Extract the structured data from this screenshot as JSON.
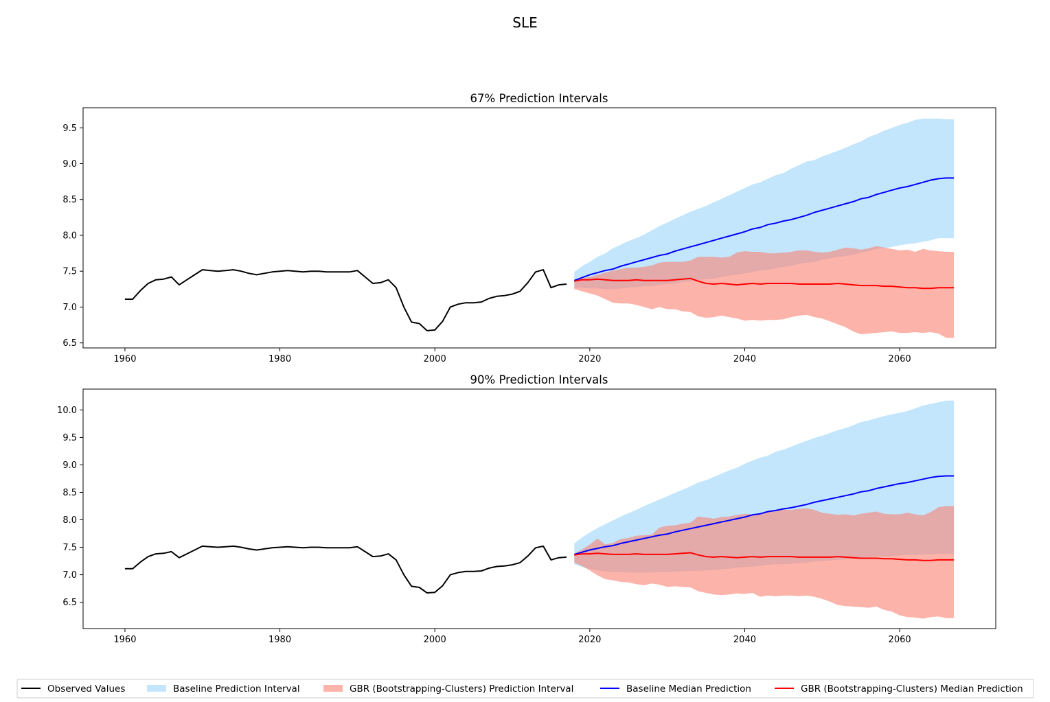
{
  "figure": {
    "title": "SLE"
  },
  "colors": {
    "observed": "#000000",
    "baseline_band": "#87CEFA",
    "baseline_median": "#0000FF",
    "gbr_band": "#FA8072",
    "gbr_median": "#FF0000"
  },
  "legend": {
    "placement": "bottom-center",
    "items": [
      {
        "label": "Observed Values",
        "kind": "line",
        "color": "#000000"
      },
      {
        "label": "Baseline Prediction Interval",
        "kind": "patch",
        "color": "#87CEFA"
      },
      {
        "label": "GBR (Bootstrapping-Clusters) Prediction Interval",
        "kind": "patch",
        "color": "#FA8072"
      },
      {
        "label": "Baseline Median Prediction",
        "kind": "line",
        "color": "#0000FF"
      },
      {
        "label": "GBR (Bootstrapping-Clusters) Median Prediction",
        "kind": "line",
        "color": "#FF0000"
      }
    ]
  },
  "chart_data": [
    {
      "type": "line",
      "title": "67% Prediction Intervals",
      "xlabel": "",
      "ylabel": "",
      "xlim": [
        1954.6,
        2072.4
      ],
      "ylim": [
        6.43,
        9.78
      ],
      "xticks": [
        1960,
        1980,
        2000,
        2020,
        2040,
        2060
      ],
      "yticks": [
        6.5,
        7.0,
        7.5,
        8.0,
        8.5,
        9.0,
        9.5
      ],
      "grid": false,
      "observed": {
        "x_start": 1960,
        "values": [
          7.11,
          7.11,
          7.23,
          7.33,
          7.38,
          7.39,
          7.42,
          7.31,
          7.38,
          7.45,
          7.52,
          7.51,
          7.5,
          7.51,
          7.52,
          7.5,
          7.47,
          7.45,
          7.47,
          7.49,
          7.5,
          7.51,
          7.5,
          7.49,
          7.5,
          7.5,
          7.49,
          7.49,
          7.49,
          7.49,
          7.51,
          7.42,
          7.33,
          7.34,
          7.38,
          7.27,
          7.0,
          6.79,
          6.77,
          6.67,
          6.68,
          6.8,
          7.0,
          7.04,
          7.06,
          7.06,
          7.07,
          7.12,
          7.15,
          7.16,
          7.18,
          7.22,
          7.34,
          7.49,
          7.52,
          7.27,
          7.31,
          7.32
        ]
      },
      "forecast": {
        "x_start": 2018,
        "baseline_median": [
          7.37,
          7.41,
          7.45,
          7.48,
          7.51,
          7.53,
          7.57,
          7.6,
          7.63,
          7.66,
          7.69,
          7.72,
          7.74,
          7.78,
          7.81,
          7.84,
          7.87,
          7.9,
          7.93,
          7.96,
          7.99,
          8.02,
          8.05,
          8.09,
          8.11,
          8.15,
          8.17,
          8.2,
          8.22,
          8.25,
          8.28,
          8.32,
          8.35,
          8.38,
          8.41,
          8.44,
          8.47,
          8.51,
          8.53,
          8.57,
          8.6,
          8.63,
          8.66,
          8.68,
          8.71,
          8.74,
          8.77,
          8.79,
          8.8,
          8.8
        ],
        "baseline_lower": [
          7.27,
          7.27,
          7.26,
          7.26,
          7.25,
          7.25,
          7.26,
          7.27,
          7.28,
          7.29,
          7.29,
          7.31,
          7.32,
          7.33,
          7.35,
          7.36,
          7.38,
          7.39,
          7.4,
          7.42,
          7.44,
          7.45,
          7.47,
          7.49,
          7.51,
          7.52,
          7.54,
          7.56,
          7.58,
          7.6,
          7.62,
          7.63,
          7.66,
          7.68,
          7.7,
          7.71,
          7.73,
          7.76,
          7.78,
          7.81,
          7.82,
          7.84,
          7.86,
          7.88,
          7.89,
          7.91,
          7.93,
          7.96,
          7.96,
          7.96
        ],
        "baseline_upper": [
          7.49,
          7.57,
          7.63,
          7.7,
          7.75,
          7.82,
          7.87,
          7.92,
          7.96,
          8.01,
          8.07,
          8.13,
          8.18,
          8.23,
          8.28,
          8.33,
          8.37,
          8.41,
          8.46,
          8.51,
          8.56,
          8.61,
          8.66,
          8.71,
          8.74,
          8.79,
          8.84,
          8.87,
          8.93,
          8.98,
          9.03,
          9.05,
          9.1,
          9.14,
          9.18,
          9.22,
          9.27,
          9.31,
          9.37,
          9.41,
          9.46,
          9.5,
          9.54,
          9.57,
          9.61,
          9.63,
          9.63,
          9.63,
          9.62,
          9.62
        ],
        "gbr_median": [
          7.36,
          7.38,
          7.38,
          7.39,
          7.38,
          7.37,
          7.37,
          7.37,
          7.38,
          7.37,
          7.37,
          7.37,
          7.37,
          7.38,
          7.39,
          7.4,
          7.36,
          7.33,
          7.32,
          7.33,
          7.32,
          7.31,
          7.32,
          7.33,
          7.32,
          7.33,
          7.33,
          7.33,
          7.33,
          7.32,
          7.32,
          7.32,
          7.32,
          7.32,
          7.33,
          7.32,
          7.31,
          7.3,
          7.3,
          7.3,
          7.29,
          7.29,
          7.28,
          7.27,
          7.27,
          7.26,
          7.26,
          7.27,
          7.27,
          7.27
        ],
        "gbr_lower": [
          7.25,
          7.22,
          7.19,
          7.16,
          7.11,
          7.06,
          7.05,
          7.05,
          7.03,
          7.0,
          6.97,
          7.0,
          6.97,
          6.97,
          6.94,
          6.93,
          6.87,
          6.85,
          6.86,
          6.88,
          6.86,
          6.84,
          6.81,
          6.82,
          6.81,
          6.82,
          6.82,
          6.83,
          6.86,
          6.88,
          6.89,
          6.86,
          6.84,
          6.8,
          6.76,
          6.72,
          6.66,
          6.62,
          6.63,
          6.64,
          6.65,
          6.66,
          6.64,
          6.64,
          6.65,
          6.64,
          6.65,
          6.63,
          6.57,
          6.57
        ],
        "gbr_upper": [
          7.38,
          7.4,
          7.42,
          7.45,
          7.48,
          7.51,
          7.53,
          7.55,
          7.55,
          7.56,
          7.58,
          7.62,
          7.63,
          7.63,
          7.63,
          7.65,
          7.7,
          7.7,
          7.7,
          7.69,
          7.7,
          7.76,
          7.78,
          7.77,
          7.77,
          7.75,
          7.75,
          7.76,
          7.77,
          7.79,
          7.79,
          7.77,
          7.76,
          7.77,
          7.8,
          7.83,
          7.82,
          7.8,
          7.82,
          7.85,
          7.83,
          7.81,
          7.79,
          7.8,
          7.77,
          7.81,
          7.79,
          7.78,
          7.77,
          7.77
        ]
      }
    },
    {
      "type": "line",
      "title": "90% Prediction Intervals",
      "xlabel": "",
      "ylabel": "",
      "xlim": [
        1954.6,
        2072.4
      ],
      "ylim": [
        6.02,
        10.38
      ],
      "xticks": [
        1960,
        1980,
        2000,
        2020,
        2040,
        2060
      ],
      "yticks": [
        6.5,
        7.0,
        7.5,
        8.0,
        8.5,
        9.0,
        9.5,
        10.0
      ],
      "grid": false,
      "observed": {
        "x_start": 1960,
        "values": [
          7.11,
          7.11,
          7.23,
          7.33,
          7.38,
          7.39,
          7.42,
          7.31,
          7.38,
          7.45,
          7.52,
          7.51,
          7.5,
          7.51,
          7.52,
          7.5,
          7.47,
          7.45,
          7.47,
          7.49,
          7.5,
          7.51,
          7.5,
          7.49,
          7.5,
          7.5,
          7.49,
          7.49,
          7.49,
          7.49,
          7.51,
          7.42,
          7.33,
          7.34,
          7.38,
          7.27,
          7.0,
          6.79,
          6.77,
          6.67,
          6.68,
          6.8,
          7.0,
          7.04,
          7.06,
          7.06,
          7.07,
          7.12,
          7.15,
          7.16,
          7.18,
          7.22,
          7.34,
          7.49,
          7.52,
          7.27,
          7.31,
          7.32
        ]
      },
      "forecast": {
        "x_start": 2018,
        "baseline_median": [
          7.37,
          7.41,
          7.45,
          7.48,
          7.51,
          7.53,
          7.57,
          7.6,
          7.63,
          7.66,
          7.69,
          7.72,
          7.74,
          7.78,
          7.81,
          7.84,
          7.87,
          7.9,
          7.93,
          7.96,
          7.99,
          8.02,
          8.05,
          8.09,
          8.11,
          8.15,
          8.17,
          8.2,
          8.22,
          8.25,
          8.28,
          8.32,
          8.35,
          8.38,
          8.41,
          8.44,
          8.47,
          8.51,
          8.53,
          8.57,
          8.6,
          8.63,
          8.66,
          8.68,
          8.71,
          8.74,
          8.77,
          8.79,
          8.8,
          8.8
        ],
        "baseline_lower": [
          7.19,
          7.14,
          7.1,
          7.08,
          7.06,
          7.05,
          7.05,
          7.04,
          7.04,
          7.04,
          7.04,
          7.05,
          7.05,
          7.06,
          7.06,
          7.07,
          7.07,
          7.08,
          7.09,
          7.1,
          7.11,
          7.13,
          7.14,
          7.15,
          7.16,
          7.18,
          7.19,
          7.19,
          7.2,
          7.21,
          7.22,
          7.24,
          7.25,
          7.26,
          7.27,
          7.28,
          7.3,
          7.31,
          7.32,
          7.33,
          7.33,
          7.34,
          7.35,
          7.36,
          7.36,
          7.37,
          7.37,
          7.38,
          7.38,
          7.38
        ],
        "baseline_upper": [
          7.57,
          7.68,
          7.77,
          7.85,
          7.92,
          7.99,
          8.06,
          8.12,
          8.18,
          8.25,
          8.31,
          8.37,
          8.43,
          8.49,
          8.55,
          8.61,
          8.68,
          8.72,
          8.78,
          8.84,
          8.9,
          8.95,
          9.02,
          9.08,
          9.13,
          9.17,
          9.24,
          9.28,
          9.33,
          9.39,
          9.44,
          9.49,
          9.53,
          9.58,
          9.63,
          9.67,
          9.72,
          9.78,
          9.81,
          9.85,
          9.89,
          9.92,
          9.95,
          9.98,
          10.03,
          10.08,
          10.11,
          10.14,
          10.17,
          10.17
        ],
        "gbr_median": [
          7.36,
          7.38,
          7.38,
          7.39,
          7.38,
          7.37,
          7.37,
          7.37,
          7.38,
          7.37,
          7.37,
          7.37,
          7.37,
          7.38,
          7.39,
          7.4,
          7.36,
          7.33,
          7.32,
          7.33,
          7.32,
          7.31,
          7.32,
          7.33,
          7.32,
          7.33,
          7.33,
          7.33,
          7.33,
          7.32,
          7.32,
          7.32,
          7.32,
          7.32,
          7.33,
          7.32,
          7.31,
          7.3,
          7.3,
          7.3,
          7.29,
          7.29,
          7.28,
          7.27,
          7.27,
          7.26,
          7.26,
          7.27,
          7.27,
          7.27
        ],
        "gbr_lower": [
          7.22,
          7.16,
          7.08,
          6.99,
          6.92,
          6.9,
          6.87,
          6.86,
          6.83,
          6.81,
          6.84,
          6.82,
          6.78,
          6.79,
          6.78,
          6.77,
          6.7,
          6.67,
          6.64,
          6.63,
          6.64,
          6.66,
          6.65,
          6.67,
          6.6,
          6.62,
          6.61,
          6.62,
          6.62,
          6.61,
          6.62,
          6.6,
          6.56,
          6.51,
          6.45,
          6.43,
          6.42,
          6.41,
          6.4,
          6.42,
          6.36,
          6.33,
          6.26,
          6.23,
          6.22,
          6.2,
          6.23,
          6.24,
          6.21,
          6.21
        ],
        "gbr_upper": [
          7.38,
          7.46,
          7.55,
          7.66,
          7.55,
          7.58,
          7.65,
          7.67,
          7.71,
          7.72,
          7.73,
          7.86,
          7.89,
          7.9,
          7.93,
          7.95,
          8.06,
          8.04,
          8.02,
          8.05,
          8.06,
          8.09,
          8.11,
          8.1,
          8.12,
          8.16,
          8.17,
          8.19,
          8.18,
          8.2,
          8.21,
          8.18,
          8.13,
          8.11,
          8.09,
          8.1,
          8.08,
          8.11,
          8.13,
          8.15,
          8.11,
          8.1,
          8.1,
          8.13,
          8.1,
          8.08,
          8.14,
          8.23,
          8.25,
          8.25
        ]
      }
    }
  ]
}
